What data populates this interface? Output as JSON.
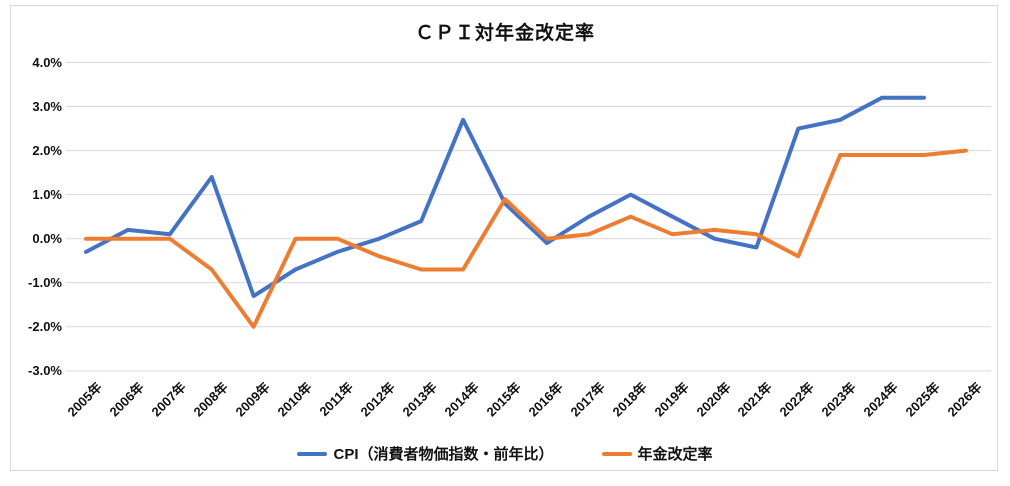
{
  "title": "ＣＰＩ対年金改定率",
  "colors": {
    "cpi_line": "#4472C4",
    "pension_line": "#ED7D31",
    "gridline": "#D9D9D9",
    "frame": "#D9D9D9",
    "text": "#111111",
    "background": "#FFFFFF"
  },
  "chart_data": {
    "type": "line",
    "title": "ＣＰＩ対年金改定率",
    "categories": [
      "2005年",
      "2006年",
      "2007年",
      "2008年",
      "2009年",
      "2010年",
      "2011年",
      "2012年",
      "2013年",
      "2014年",
      "2015年",
      "2016年",
      "2017年",
      "2018年",
      "2019年",
      "2020年",
      "2021年",
      "2022年",
      "2023年",
      "2024年",
      "2025年",
      "2026年"
    ],
    "series": [
      {
        "name": "CPI（消費者物価指数・前年比）",
        "color": "#4472C4",
        "values": [
          -0.3,
          0.2,
          0.1,
          1.4,
          -1.3,
          -0.7,
          -0.3,
          0.0,
          0.4,
          2.7,
          0.8,
          -0.1,
          0.5,
          1.0,
          0.5,
          0.0,
          -0.2,
          2.5,
          2.7,
          3.2,
          3.2,
          null
        ]
      },
      {
        "name": "年金改定率",
        "color": "#ED7D31",
        "values": [
          0.0,
          0.0,
          0.0,
          -0.7,
          -2.0,
          0.0,
          0.0,
          -0.4,
          -0.7,
          -0.7,
          0.9,
          0.0,
          0.1,
          0.5,
          0.1,
          0.2,
          0.1,
          -0.4,
          1.9,
          1.9,
          1.9,
          2.0
        ]
      }
    ],
    "xlabel": "",
    "ylabel": "",
    "ylim": [
      -3.0,
      4.0
    ],
    "yticks": [
      4.0,
      3.0,
      2.0,
      1.0,
      0.0,
      -1.0,
      -2.0,
      -3.0
    ],
    "ytick_labels": [
      "4.0%",
      "3.0%",
      "2.0%",
      "1.0%",
      "0.0%",
      "-1.0%",
      "-2.0%",
      "-3.0%"
    ],
    "grid": true,
    "legend_position": "bottom"
  }
}
